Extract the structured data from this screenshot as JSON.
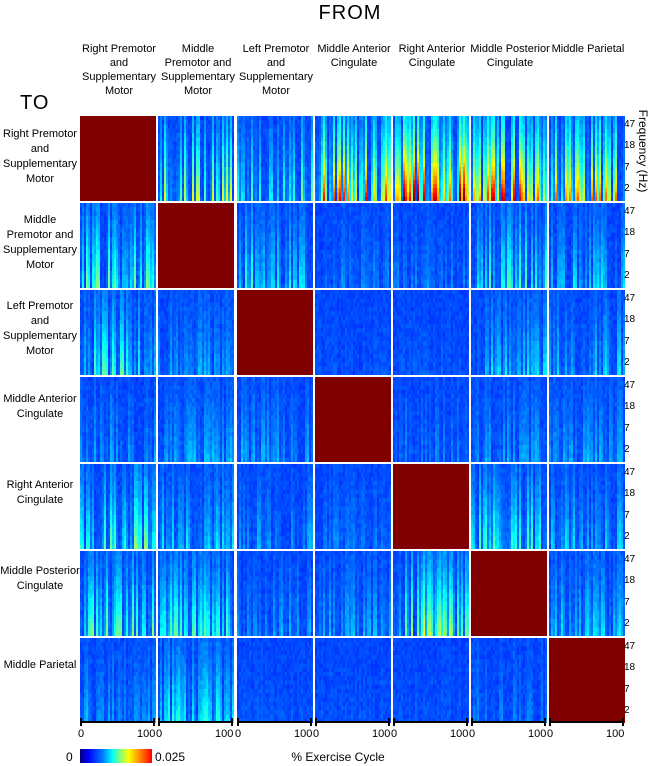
{
  "header": {
    "title": "FROM",
    "to_label": "TO"
  },
  "chart_data": {
    "type": "heatmap",
    "title": "FROM",
    "row_axis_label": "TO",
    "xlabel": "% Exercise Cycle",
    "ylabel": "Frequency (Hz)",
    "regions": [
      "Right Premotor and Supplementary Motor",
      "Middle Premotor and Supplementary Motor",
      "Left Premotor and Supplementary Motor",
      "Middle Anterior Cingulate",
      "Right Anterior Cingulate",
      "Middle Posterior Cingulate",
      "Middle Parietal"
    ],
    "x_ticks": [
      "0",
      "100"
    ],
    "y_ticks": [
      "47",
      "18",
      "7",
      "2"
    ],
    "xlim": [
      0,
      100
    ],
    "ylim_hz": [
      2,
      47
    ],
    "y_scale": "log",
    "colorbar": {
      "min_label": "0",
      "max_label": "0.025",
      "range": [
        0,
        0.025
      ],
      "colormap": "jet"
    },
    "diagonal_note": "diagonal cells saturated at max",
    "peak_intensity": [
      [
        1.0,
        0.55,
        0.45,
        0.8,
        0.95,
        0.85,
        0.7
      ],
      [
        0.45,
        1.0,
        0.4,
        0.2,
        0.2,
        0.4,
        0.3
      ],
      [
        0.4,
        0.25,
        1.0,
        0.15,
        0.15,
        0.3,
        0.3
      ],
      [
        0.25,
        0.25,
        0.25,
        1.0,
        0.2,
        0.25,
        0.25
      ],
      [
        0.45,
        0.3,
        0.25,
        0.2,
        1.0,
        0.4,
        0.3
      ],
      [
        0.45,
        0.4,
        0.25,
        0.25,
        0.55,
        1.0,
        0.3
      ],
      [
        0.25,
        0.35,
        0.15,
        0.15,
        0.15,
        0.2,
        1.0
      ]
    ]
  },
  "column_labels": [
    "Right Premotor and Supplementary Motor",
    "Middle Premotor and Supplementary Motor",
    "Left Premotor and Supplementary Motor",
    "Middle Anterior Cingulate",
    "Right Anterior Cingulate",
    "Middle Posterior Cingulate",
    "Middle Parietal"
  ],
  "row_labels": [
    "Right Premotor and Supplementary Motor",
    "Middle Premotor and Supplementary Motor",
    "Left Premotor and Supplementary Motor",
    "Middle Anterior Cingulate",
    "Right Anterior Cingulate",
    "Middle Posterior Cingulate",
    "Middle Parietal"
  ],
  "axis": {
    "freq_label": "Frequency (Hz)",
    "freq_ticks": [
      "47",
      "18",
      "7",
      "2"
    ],
    "x_label": "% Exercise Cycle",
    "x_tick_start": "0",
    "x_tick_end": "100"
  },
  "colorbar": {
    "min_label": "0",
    "max_label": "0.025"
  }
}
